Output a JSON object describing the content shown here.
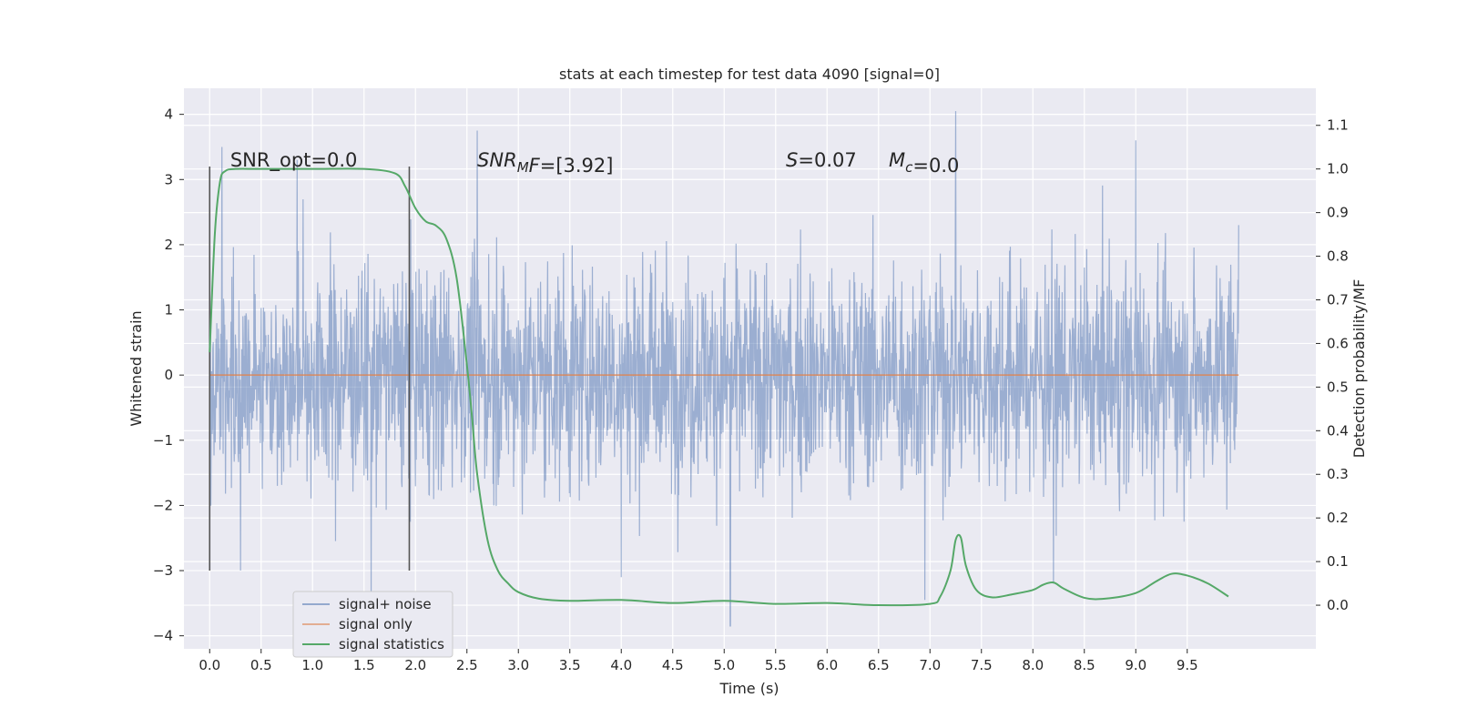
{
  "chart_data": {
    "type": "line",
    "title": "stats at each timestep for test data 4090 [signal=0]",
    "xlabel": "Time (s)",
    "ylabel": "Whitened strain",
    "ylabel_right": "Detection probability/MF",
    "xlim": [
      -0.25,
      10.75
    ],
    "ylim": [
      -4.2,
      4.4
    ],
    "ylim_right": [
      -0.1,
      1.185
    ],
    "x_ticks": [
      0.0,
      0.5,
      1.0,
      1.5,
      2.0,
      2.5,
      3.0,
      3.5,
      4.0,
      4.5,
      5.0,
      5.5,
      6.0,
      6.5,
      7.0,
      7.5,
      8.0,
      8.5,
      9.0,
      9.5
    ],
    "x_tick_labels": [
      "0.0",
      "0.5",
      "1.0",
      "1.5",
      "2.0",
      "2.5",
      "3.0",
      "3.5",
      "4.0",
      "4.5",
      "5.0",
      "5.5",
      "6.0",
      "6.5",
      "7.0",
      "7.5",
      "8.0",
      "8.5",
      "9.0",
      "9.5"
    ],
    "y_ticks": [
      -4,
      -3,
      -2,
      -1,
      0,
      1,
      2,
      3,
      4
    ],
    "y_tick_labels": [
      "−4",
      "−3",
      "−2",
      "−1",
      "0",
      "1",
      "2",
      "3",
      "4"
    ],
    "y_ticks_right": [
      0.0,
      0.1,
      0.2,
      0.3,
      0.4,
      0.5,
      0.6,
      0.7,
      0.8,
      0.9,
      1.0,
      1.1
    ],
    "y_tick_labels_right": [
      "0.0",
      "0.1",
      "0.2",
      "0.3",
      "0.4",
      "0.5",
      "0.6",
      "0.7",
      "0.8",
      "0.9",
      "1.0",
      "1.1"
    ],
    "grid": true,
    "legend_position": "lower-left",
    "vertical_markers": [
      {
        "x": 0.0,
        "y_range": [
          -3.0,
          3.2
        ]
      },
      {
        "x": 1.94,
        "y_range": [
          -3.0,
          3.2
        ]
      }
    ],
    "annotations": [
      {
        "x": 0.2,
        "y": 3.2,
        "text": "SNR_opt=0.0"
      },
      {
        "x": 2.6,
        "y": 3.2,
        "text_parts": [
          {
            "t": "SNR",
            "italic": true
          },
          {
            "t": "M",
            "italic": true,
            "sub": true
          },
          {
            "t": "F",
            "italic": true
          },
          {
            "t": "=[3.92]"
          }
        ]
      },
      {
        "x": 5.6,
        "y": 3.2,
        "text_parts": [
          {
            "t": "S",
            "italic": true
          },
          {
            "t": "=0.07"
          }
        ]
      },
      {
        "x": 6.6,
        "y": 3.2,
        "text_parts": [
          {
            "t": "M",
            "italic": true
          },
          {
            "t": "c",
            "italic": true,
            "sub": true
          },
          {
            "t": "=0.0"
          }
        ]
      }
    ],
    "series": [
      {
        "name": "signal+ noise",
        "axis": "left",
        "color": "#4c72b0",
        "style": "noise",
        "x_range": [
          0.0,
          10.0
        ],
        "typical_amplitude": 1.0,
        "envelope_max": [
          [
            0.0,
            2.6
          ],
          [
            0.12,
            3.5
          ],
          [
            0.85,
            3.3
          ],
          [
            2.6,
            3.75
          ],
          [
            7.25,
            4.05
          ],
          [
            9.0,
            3.6
          ],
          [
            10.0,
            2.3
          ]
        ],
        "envelope_min": [
          [
            1.57,
            -3.4
          ],
          [
            5.06,
            -3.85
          ],
          [
            6.95,
            -3.45
          ],
          [
            8.2,
            -3.2
          ],
          [
            4.0,
            -3.1
          ],
          [
            0.3,
            -3.0
          ]
        ]
      },
      {
        "name": "signal only",
        "axis": "left",
        "color": "#dd8452",
        "x": [
          0.0,
          10.0
        ],
        "y": [
          0.0,
          0.0
        ]
      },
      {
        "name": "signal statistics",
        "axis": "right",
        "color": "#55a868",
        "x": [
          0.0,
          0.05,
          0.1,
          0.15,
          0.25,
          0.5,
          1.0,
          1.5,
          1.8,
          1.9,
          2.0,
          2.1,
          2.2,
          2.3,
          2.4,
          2.5,
          2.55,
          2.6,
          2.7,
          2.8,
          2.9,
          3.0,
          3.2,
          3.5,
          4.0,
          4.5,
          5.0,
          5.5,
          6.0,
          6.5,
          7.0,
          7.1,
          7.2,
          7.25,
          7.3,
          7.35,
          7.45,
          7.6,
          7.8,
          8.0,
          8.1,
          8.2,
          8.3,
          8.5,
          8.7,
          9.0,
          9.2,
          9.35,
          9.5,
          9.7,
          9.9
        ],
        "y": [
          0.58,
          0.85,
          0.97,
          0.995,
          1.0,
          1.0,
          1.0,
          1.0,
          0.99,
          0.96,
          0.91,
          0.88,
          0.87,
          0.84,
          0.75,
          0.55,
          0.43,
          0.3,
          0.15,
          0.08,
          0.05,
          0.03,
          0.015,
          0.01,
          0.012,
          0.005,
          0.01,
          0.003,
          0.005,
          0.0,
          0.003,
          0.02,
          0.08,
          0.15,
          0.155,
          0.09,
          0.035,
          0.018,
          0.025,
          0.035,
          0.047,
          0.052,
          0.038,
          0.017,
          0.015,
          0.028,
          0.055,
          0.072,
          0.068,
          0.05,
          0.02
        ]
      }
    ]
  }
}
